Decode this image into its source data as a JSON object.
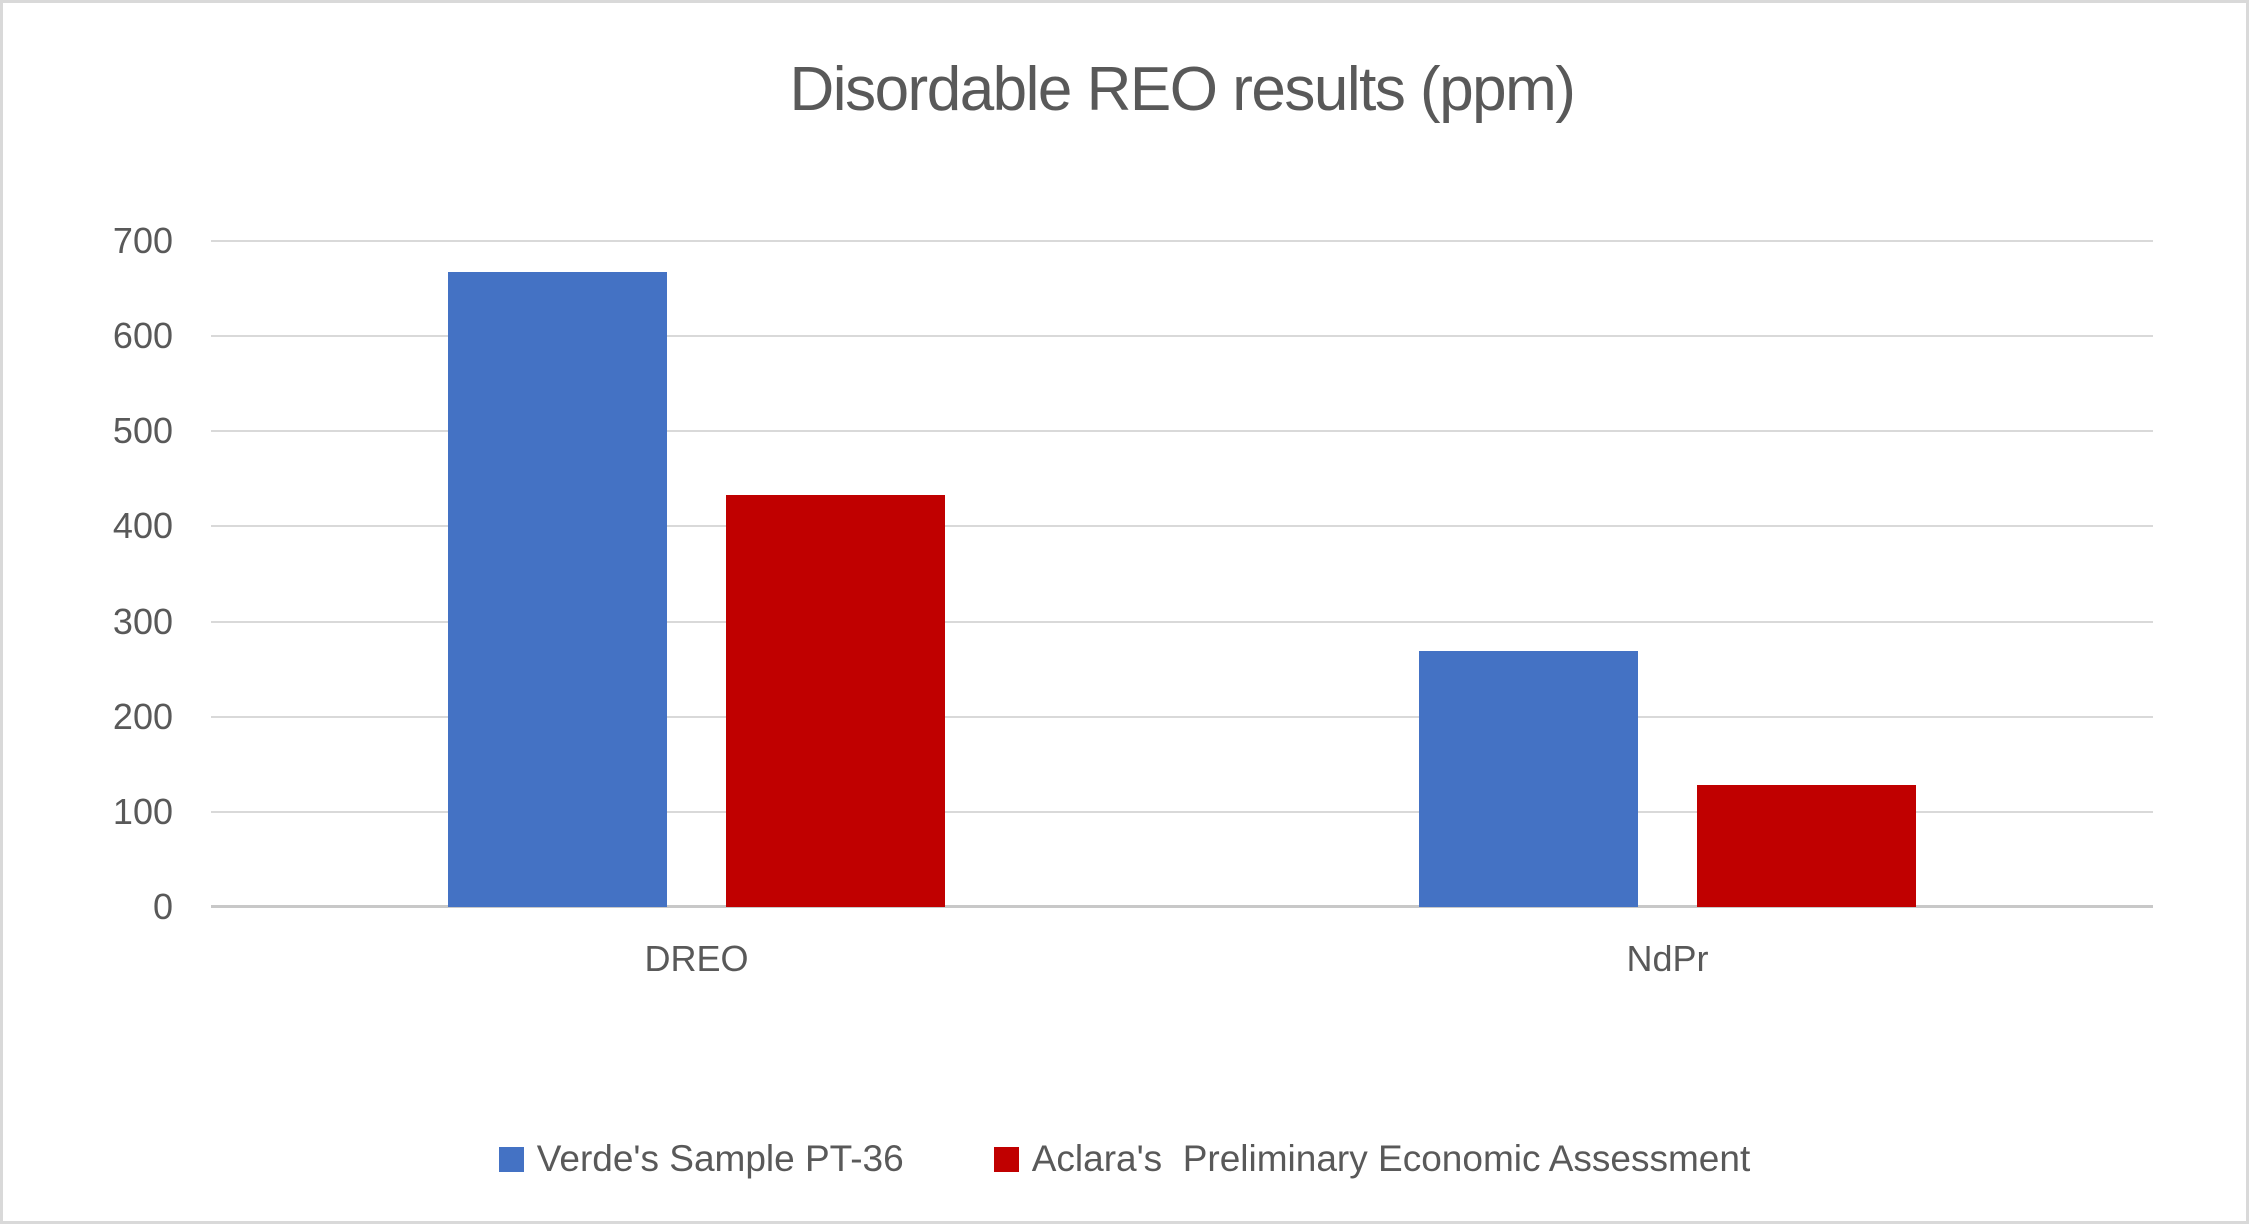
{
  "chart_data": {
    "type": "bar",
    "title": "Disordable REO results (ppm)",
    "categories": [
      "DREO",
      "NdPr"
    ],
    "series": [
      {
        "name": "Verde's Sample PT-36",
        "color": "#4472C4",
        "values": [
          667,
          269
        ]
      },
      {
        "name": "Aclara's  Preliminary Economic Assessment",
        "color": "#C00000",
        "values": [
          433,
          128
        ]
      }
    ],
    "xlabel": "",
    "ylabel": "",
    "ylim": [
      0,
      700
    ],
    "y_ticks": [
      0,
      100,
      200,
      300,
      400,
      500,
      600,
      700
    ],
    "grid": true,
    "legend_position": "bottom"
  },
  "styles": {
    "background": "#FFFFFF",
    "border_color": "#D9D9D9",
    "gridline_color": "#D9D9D9",
    "axis_line_color": "#C8C8C8",
    "text_color": "#595959"
  }
}
